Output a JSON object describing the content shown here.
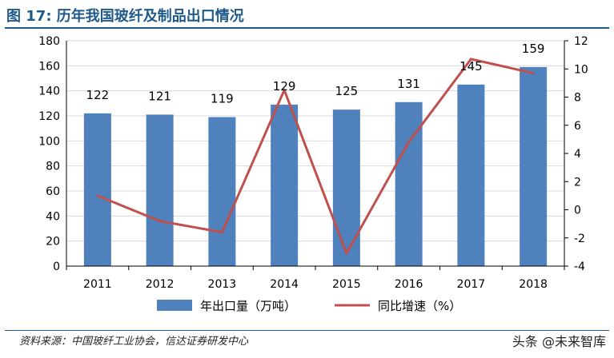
{
  "header": {
    "title": "图 17: 历年我国玻纤及制品出口情况"
  },
  "chart_data": {
    "type": "bar",
    "categories": [
      "2011",
      "2012",
      "2013",
      "2014",
      "2015",
      "2016",
      "2017",
      "2018"
    ],
    "series": [
      {
        "name": "年出口量（万吨）",
        "kind": "bar",
        "axis": "left",
        "values": [
          122,
          121,
          119,
          129,
          125,
          131,
          145,
          159
        ],
        "color": "#4f81bd"
      },
      {
        "name": "同比增速（%）",
        "kind": "line",
        "axis": "right",
        "values": [
          1.0,
          -0.8,
          -1.6,
          8.5,
          -3.1,
          4.8,
          10.7,
          9.7
        ],
        "color": "#c0504d"
      }
    ],
    "data_labels": [
      "122",
      "121",
      "119",
      "129",
      "125",
      "131",
      "145",
      "159"
    ],
    "y_left": {
      "ylim": [
        0,
        180
      ],
      "ticks": [
        "0",
        "20",
        "40",
        "60",
        "80",
        "100",
        "120",
        "140",
        "160",
        "180"
      ]
    },
    "y_right": {
      "ylim": [
        -4,
        12
      ],
      "ticks": [
        "-4",
        "-2",
        "0",
        "2",
        "4",
        "6",
        "8",
        "10",
        "12"
      ]
    },
    "grid": true,
    "legend_position": "bottom"
  },
  "footer": {
    "source": "资料来源：中国玻纤工业协会，信达证券研发中心",
    "watermark": "头条 @未来智库"
  }
}
